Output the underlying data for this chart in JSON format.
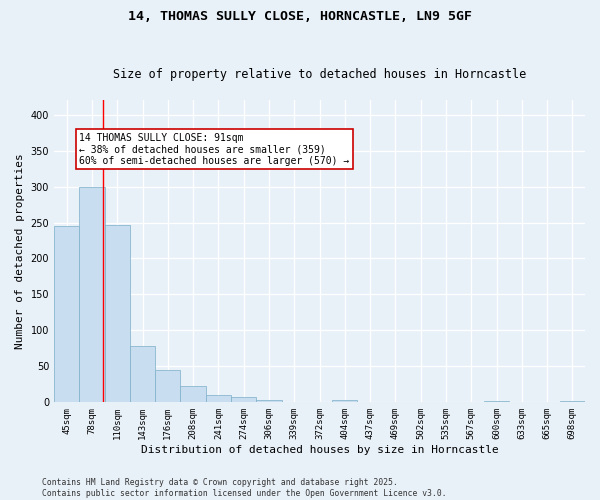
{
  "title1": "14, THOMAS SULLY CLOSE, HORNCASTLE, LN9 5GF",
  "title2": "Size of property relative to detached houses in Horncastle",
  "xlabel": "Distribution of detached houses by size in Horncastle",
  "ylabel": "Number of detached properties",
  "bar_labels": [
    "45sqm",
    "78sqm",
    "110sqm",
    "143sqm",
    "176sqm",
    "208sqm",
    "241sqm",
    "274sqm",
    "306sqm",
    "339sqm",
    "372sqm",
    "404sqm",
    "437sqm",
    "469sqm",
    "502sqm",
    "535sqm",
    "567sqm",
    "600sqm",
    "633sqm",
    "665sqm",
    "698sqm"
  ],
  "bar_values": [
    245,
    300,
    247,
    78,
    45,
    23,
    10,
    7,
    3,
    0,
    0,
    3,
    0,
    0,
    0,
    0,
    0,
    2,
    0,
    0,
    2
  ],
  "bar_color": "#c9ddf0",
  "bar_edge_color": "#7aafc8",
  "ylim": [
    0,
    420
  ],
  "yticks": [
    0,
    50,
    100,
    150,
    200,
    250,
    300,
    350,
    400
  ],
  "red_line_x": 1.42,
  "annotation_text": "14 THOMAS SULLY CLOSE: 91sqm\n← 38% of detached houses are smaller (359)\n60% of semi-detached houses are larger (570) →",
  "annotation_box_color": "#ffffff",
  "annotation_box_edge": "#cc0000",
  "footer_line1": "Contains HM Land Registry data © Crown copyright and database right 2025.",
  "footer_line2": "Contains public sector information licensed under the Open Government Licence v3.0.",
  "background_color": "#e8f0f8",
  "plot_bg_color": "#e8f0f8",
  "grid_color": "#ffffff",
  "title_fontsize": 9.5,
  "subtitle_fontsize": 8.5,
  "tick_fontsize": 6.5,
  "label_fontsize": 8,
  "annotation_fontsize": 7,
  "footer_fontsize": 5.8
}
